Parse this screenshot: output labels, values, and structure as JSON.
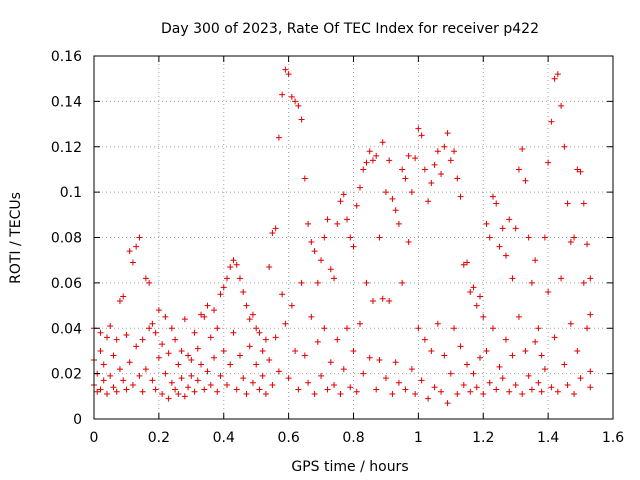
{
  "chart_data": {
    "type": "scatter",
    "title": "Day 300 of 2023, Rate Of TEC Index for receiver p422",
    "xlabel": "GPS time / hours",
    "ylabel": "ROTI / TECUs",
    "xlim": [
      0,
      1.6
    ],
    "ylim": [
      0,
      0.16
    ],
    "xticks": [
      0,
      0.2,
      0.4,
      0.6,
      0.8,
      1,
      1.2,
      1.4,
      1.6
    ],
    "xtick_labels": [
      "0",
      "0.2",
      "0.4",
      "0.6",
      "0.8",
      "1",
      "1.2",
      "1.4",
      "1.6"
    ],
    "yticks": [
      0,
      0.02,
      0.04,
      0.06,
      0.08,
      0.1,
      0.12,
      0.14,
      0.16
    ],
    "ytick_labels": [
      "0",
      "0.02",
      "0.04",
      "0.06",
      "0.08",
      "0.1",
      "0.12",
      "0.14",
      "0.16"
    ],
    "grid": true,
    "marker": "+",
    "color": "#e00000",
    "series": [
      {
        "name": "ROTI",
        "points": [
          [
            0.0,
            0.04
          ],
          [
            0.0,
            0.026
          ],
          [
            0.0,
            0.015
          ],
          [
            0.01,
            0.012
          ],
          [
            0.01,
            0.02
          ],
          [
            0.02,
            0.038
          ],
          [
            0.02,
            0.03
          ],
          [
            0.02,
            0.013
          ],
          [
            0.03,
            0.017
          ],
          [
            0.03,
            0.024
          ],
          [
            0.04,
            0.036
          ],
          [
            0.04,
            0.011
          ],
          [
            0.05,
            0.041
          ],
          [
            0.05,
            0.019
          ],
          [
            0.06,
            0.028
          ],
          [
            0.06,
            0.014
          ],
          [
            0.07,
            0.035
          ],
          [
            0.07,
            0.012
          ],
          [
            0.08,
            0.022
          ],
          [
            0.08,
            0.052
          ],
          [
            0.09,
            0.054
          ],
          [
            0.09,
            0.017
          ],
          [
            0.1,
            0.037
          ],
          [
            0.1,
            0.013
          ],
          [
            0.11,
            0.074
          ],
          [
            0.11,
            0.025
          ],
          [
            0.12,
            0.069
          ],
          [
            0.12,
            0.015
          ],
          [
            0.13,
            0.076
          ],
          [
            0.13,
            0.032
          ],
          [
            0.14,
            0.08
          ],
          [
            0.14,
            0.019
          ],
          [
            0.15,
            0.035
          ],
          [
            0.15,
            0.012
          ],
          [
            0.16,
            0.062
          ],
          [
            0.16,
            0.022
          ],
          [
            0.17,
            0.06
          ],
          [
            0.17,
            0.04
          ],
          [
            0.18,
            0.042
          ],
          [
            0.18,
            0.017
          ],
          [
            0.19,
            0.038
          ],
          [
            0.19,
            0.013
          ],
          [
            0.2,
            0.048
          ],
          [
            0.2,
            0.027
          ],
          [
            0.21,
            0.033
          ],
          [
            0.21,
            0.011
          ],
          [
            0.22,
            0.045
          ],
          [
            0.22,
            0.02
          ],
          [
            0.23,
            0.009
          ],
          [
            0.23,
            0.029
          ],
          [
            0.24,
            0.04
          ],
          [
            0.24,
            0.016
          ],
          [
            0.25,
            0.035
          ],
          [
            0.25,
            0.013
          ],
          [
            0.26,
            0.024
          ],
          [
            0.26,
            0.011
          ],
          [
            0.27,
            0.03
          ],
          [
            0.27,
            0.018
          ],
          [
            0.28,
            0.044
          ],
          [
            0.28,
            0.01
          ],
          [
            0.29,
            0.028
          ],
          [
            0.29,
            0.014
          ],
          [
            0.3,
            0.026
          ],
          [
            0.3,
            0.019
          ],
          [
            0.31,
            0.038
          ],
          [
            0.31,
            0.012
          ],
          [
            0.32,
            0.031
          ],
          [
            0.32,
            0.017
          ],
          [
            0.33,
            0.046
          ],
          [
            0.33,
            0.024
          ],
          [
            0.34,
            0.045
          ],
          [
            0.34,
            0.013
          ],
          [
            0.35,
            0.05
          ],
          [
            0.35,
            0.021
          ],
          [
            0.36,
            0.036
          ],
          [
            0.36,
            0.015
          ],
          [
            0.37,
            0.048
          ],
          [
            0.37,
            0.027
          ],
          [
            0.38,
            0.04
          ],
          [
            0.38,
            0.012
          ],
          [
            0.39,
            0.055
          ],
          [
            0.39,
            0.019
          ],
          [
            0.4,
            0.058
          ],
          [
            0.4,
            0.03
          ],
          [
            0.41,
            0.062
          ],
          [
            0.41,
            0.015
          ],
          [
            0.42,
            0.067
          ],
          [
            0.42,
            0.024
          ],
          [
            0.43,
            0.07
          ],
          [
            0.43,
            0.038
          ],
          [
            0.44,
            0.068
          ],
          [
            0.44,
            0.013
          ],
          [
            0.45,
            0.062
          ],
          [
            0.45,
            0.028
          ],
          [
            0.46,
            0.056
          ],
          [
            0.46,
            0.018
          ],
          [
            0.47,
            0.05
          ],
          [
            0.47,
            0.011
          ],
          [
            0.48,
            0.044
          ],
          [
            0.48,
            0.032
          ],
          [
            0.49,
            0.046
          ],
          [
            0.49,
            0.016
          ],
          [
            0.5,
            0.04
          ],
          [
            0.5,
            0.024
          ],
          [
            0.51,
            0.038
          ],
          [
            0.51,
            0.013
          ],
          [
            0.52,
            0.03
          ],
          [
            0.52,
            0.019
          ],
          [
            0.53,
            0.035
          ],
          [
            0.53,
            0.011
          ],
          [
            0.54,
            0.067
          ],
          [
            0.54,
            0.026
          ],
          [
            0.55,
            0.082
          ],
          [
            0.55,
            0.015
          ],
          [
            0.56,
            0.084
          ],
          [
            0.56,
            0.036
          ],
          [
            0.57,
            0.124
          ],
          [
            0.57,
            0.021
          ],
          [
            0.58,
            0.143
          ],
          [
            0.58,
            0.055
          ],
          [
            0.59,
            0.154
          ],
          [
            0.59,
            0.042
          ],
          [
            0.6,
            0.152
          ],
          [
            0.6,
            0.018
          ],
          [
            0.61,
            0.142
          ],
          [
            0.61,
            0.05
          ],
          [
            0.62,
            0.14
          ],
          [
            0.62,
            0.03
          ],
          [
            0.63,
            0.138
          ],
          [
            0.63,
            0.013
          ],
          [
            0.64,
            0.132
          ],
          [
            0.64,
            0.06
          ],
          [
            0.65,
            0.106
          ],
          [
            0.65,
            0.028
          ],
          [
            0.66,
            0.086
          ],
          [
            0.66,
            0.016
          ],
          [
            0.67,
            0.078
          ],
          [
            0.67,
            0.045
          ],
          [
            0.68,
            0.074
          ],
          [
            0.68,
            0.011
          ],
          [
            0.69,
            0.06
          ],
          [
            0.69,
            0.034
          ],
          [
            0.7,
            0.07
          ],
          [
            0.7,
            0.019
          ],
          [
            0.71,
            0.08
          ],
          [
            0.71,
            0.04
          ],
          [
            0.72,
            0.088
          ],
          [
            0.72,
            0.013
          ],
          [
            0.73,
            0.066
          ],
          [
            0.73,
            0.025
          ],
          [
            0.74,
            0.062
          ],
          [
            0.74,
            0.015
          ],
          [
            0.75,
            0.086
          ],
          [
            0.75,
            0.035
          ],
          [
            0.76,
            0.096
          ],
          [
            0.76,
            0.011
          ],
          [
            0.77,
            0.099
          ],
          [
            0.77,
            0.022
          ],
          [
            0.78,
            0.088
          ],
          [
            0.78,
            0.04
          ],
          [
            0.79,
            0.08
          ],
          [
            0.79,
            0.014
          ],
          [
            0.8,
            0.076
          ],
          [
            0.8,
            0.03
          ],
          [
            0.81,
            0.094
          ],
          [
            0.81,
            0.012
          ],
          [
            0.82,
            0.102
          ],
          [
            0.82,
            0.042
          ],
          [
            0.83,
            0.11
          ],
          [
            0.83,
            0.02
          ],
          [
            0.84,
            0.113
          ],
          [
            0.84,
            0.06
          ],
          [
            0.85,
            0.118
          ],
          [
            0.85,
            0.027
          ],
          [
            0.86,
            0.114
          ],
          [
            0.86,
            0.052
          ],
          [
            0.87,
            0.116
          ],
          [
            0.87,
            0.013
          ],
          [
            0.88,
            0.08
          ],
          [
            0.88,
            0.026
          ],
          [
            0.89,
            0.122
          ],
          [
            0.89,
            0.053
          ],
          [
            0.9,
            0.1
          ],
          [
            0.9,
            0.018
          ],
          [
            0.91,
            0.114
          ],
          [
            0.91,
            0.052
          ],
          [
            0.92,
            0.097
          ],
          [
            0.92,
            0.011
          ],
          [
            0.93,
            0.092
          ],
          [
            0.93,
            0.025
          ],
          [
            0.94,
            0.086
          ],
          [
            0.94,
            0.016
          ],
          [
            0.95,
            0.11
          ],
          [
            0.95,
            0.06
          ],
          [
            0.96,
            0.106
          ],
          [
            0.96,
            0.013
          ],
          [
            0.97,
            0.116
          ],
          [
            0.97,
            0.078
          ],
          [
            0.98,
            0.1
          ],
          [
            0.98,
            0.022
          ],
          [
            0.99,
            0.115
          ],
          [
            0.99,
            0.011
          ],
          [
            1.0,
            0.128
          ],
          [
            1.0,
            0.04
          ],
          [
            1.01,
            0.125
          ],
          [
            1.01,
            0.017
          ],
          [
            1.02,
            0.11
          ],
          [
            1.02,
            0.035
          ],
          [
            1.03,
            0.096
          ],
          [
            1.03,
            0.009
          ],
          [
            1.04,
            0.104
          ],
          [
            1.04,
            0.03
          ],
          [
            1.05,
            0.112
          ],
          [
            1.05,
            0.014
          ],
          [
            1.06,
            0.118
          ],
          [
            1.06,
            0.042
          ],
          [
            1.07,
            0.108
          ],
          [
            1.07,
            0.012
          ],
          [
            1.08,
            0.12
          ],
          [
            1.08,
            0.028
          ],
          [
            1.09,
            0.126
          ],
          [
            1.09,
            0.007
          ],
          [
            1.1,
            0.114
          ],
          [
            1.1,
            0.02
          ],
          [
            1.11,
            0.118
          ],
          [
            1.11,
            0.04
          ],
          [
            1.12,
            0.106
          ],
          [
            1.12,
            0.011
          ],
          [
            1.13,
            0.098
          ],
          [
            1.13,
            0.032
          ],
          [
            1.14,
            0.068
          ],
          [
            1.14,
            0.015
          ],
          [
            1.15,
            0.069
          ],
          [
            1.15,
            0.024
          ],
          [
            1.16,
            0.056
          ],
          [
            1.16,
            0.012
          ],
          [
            1.17,
            0.058
          ],
          [
            1.17,
            0.02
          ],
          [
            1.18,
            0.05
          ],
          [
            1.18,
            0.014
          ],
          [
            1.19,
            0.054
          ],
          [
            1.19,
            0.027
          ],
          [
            1.2,
            0.045
          ],
          [
            1.2,
            0.011
          ],
          [
            1.21,
            0.086
          ],
          [
            1.21,
            0.03
          ],
          [
            1.22,
            0.08
          ],
          [
            1.22,
            0.016
          ],
          [
            1.23,
            0.098
          ],
          [
            1.23,
            0.04
          ],
          [
            1.24,
            0.095
          ],
          [
            1.24,
            0.013
          ],
          [
            1.25,
            0.076
          ],
          [
            1.25,
            0.023
          ],
          [
            1.26,
            0.084
          ],
          [
            1.26,
            0.018
          ],
          [
            1.27,
            0.072
          ],
          [
            1.27,
            0.035
          ],
          [
            1.28,
            0.088
          ],
          [
            1.28,
            0.012
          ],
          [
            1.29,
            0.062
          ],
          [
            1.29,
            0.028
          ],
          [
            1.3,
            0.084
          ],
          [
            1.3,
            0.015
          ],
          [
            1.31,
            0.11
          ],
          [
            1.31,
            0.045
          ],
          [
            1.32,
            0.119
          ],
          [
            1.32,
            0.011
          ],
          [
            1.33,
            0.105
          ],
          [
            1.33,
            0.03
          ],
          [
            1.34,
            0.08
          ],
          [
            1.34,
            0.019
          ],
          [
            1.35,
            0.06
          ],
          [
            1.35,
            0.013
          ],
          [
            1.36,
            0.07
          ],
          [
            1.36,
            0.034
          ],
          [
            1.37,
            0.04
          ],
          [
            1.37,
            0.016
          ],
          [
            1.38,
            0.028
          ],
          [
            1.38,
            0.012
          ],
          [
            1.39,
            0.08
          ],
          [
            1.39,
            0.022
          ],
          [
            1.4,
            0.113
          ],
          [
            1.4,
            0.056
          ],
          [
            1.41,
            0.131
          ],
          [
            1.41,
            0.014
          ],
          [
            1.42,
            0.15
          ],
          [
            1.42,
            0.036
          ],
          [
            1.43,
            0.152
          ],
          [
            1.43,
            0.012
          ],
          [
            1.44,
            0.138
          ],
          [
            1.44,
            0.062
          ],
          [
            1.45,
            0.12
          ],
          [
            1.45,
            0.024
          ],
          [
            1.46,
            0.095
          ],
          [
            1.46,
            0.015
          ],
          [
            1.47,
            0.078
          ],
          [
            1.47,
            0.042
          ],
          [
            1.48,
            0.08
          ],
          [
            1.48,
            0.011
          ],
          [
            1.49,
            0.11
          ],
          [
            1.49,
            0.03
          ],
          [
            1.5,
            0.109
          ],
          [
            1.5,
            0.018
          ],
          [
            1.51,
            0.095
          ],
          [
            1.51,
            0.06
          ],
          [
            1.52,
            0.077
          ],
          [
            1.52,
            0.04
          ],
          [
            1.53,
            0.062
          ],
          [
            1.53,
            0.021
          ],
          [
            1.53,
            0.046
          ],
          [
            1.53,
            0.014
          ]
        ]
      }
    ]
  }
}
